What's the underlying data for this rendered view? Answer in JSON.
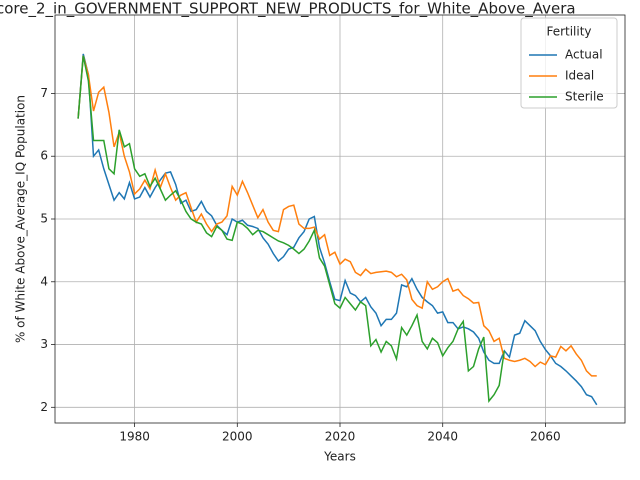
{
  "chart_data": {
    "type": "line",
    "title": "core_2_in_GOVERNMENT_SUPPORT_NEW_PRODUCTS_for_White_Above_Avera",
    "x_label": "Years",
    "y_label": "% of White Above_Average_IQ Population",
    "legend_title": "Fertility",
    "legend": "upper right",
    "grid": true,
    "xlim": [
      1964.5,
      2075.5
    ],
    "ylim": [
      1.75,
      8.25
    ],
    "xticks": [
      1980,
      2000,
      2020,
      2040,
      2060
    ],
    "yticks": [
      2,
      3,
      4,
      5,
      6,
      7
    ],
    "x": [
      1969,
      1970,
      1971,
      1972,
      1973,
      1974,
      1975,
      1976,
      1977,
      1978,
      1979,
      1980,
      1981,
      1982,
      1983,
      1984,
      1985,
      1986,
      1987,
      1988,
      1989,
      1990,
      1991,
      1992,
      1993,
      1994,
      1995,
      1996,
      1997,
      1998,
      1999,
      2000,
      2001,
      2002,
      2003,
      2004,
      2005,
      2006,
      2007,
      2008,
      2009,
      2010,
      2011,
      2012,
      2013,
      2014,
      2015,
      2016,
      2017,
      2018,
      2019,
      2020,
      2021,
      2022,
      2023,
      2024,
      2025,
      2026,
      2027,
      2028,
      2029,
      2030,
      2031,
      2032,
      2033,
      2034,
      2035,
      2036,
      2037,
      2038,
      2039,
      2040,
      2041,
      2042,
      2043,
      2044,
      2045,
      2046,
      2047,
      2048,
      2049,
      2050,
      2051,
      2052,
      2053,
      2054,
      2055,
      2056,
      2057,
      2058,
      2059,
      2060,
      2061,
      2062,
      2063,
      2064,
      2065,
      2066,
      2067,
      2068,
      2069,
      2070
    ],
    "series": [
      {
        "name": "Actual",
        "color": "#1f77b4",
        "values": [
          6.6,
          7.63,
          7.3,
          6.0,
          6.1,
          5.8,
          5.55,
          5.3,
          5.42,
          5.32,
          5.58,
          5.32,
          5.35,
          5.5,
          5.35,
          5.5,
          5.62,
          5.73,
          5.75,
          5.55,
          5.25,
          5.3,
          5.12,
          5.15,
          5.28,
          5.12,
          5.05,
          4.9,
          4.82,
          4.75,
          5.0,
          4.95,
          4.98,
          4.9,
          4.88,
          4.85,
          4.7,
          4.6,
          4.45,
          4.33,
          4.4,
          4.52,
          4.55,
          4.7,
          4.8,
          5.0,
          5.04,
          4.55,
          4.3,
          4.0,
          3.72,
          3.7,
          4.02,
          3.82,
          3.78,
          3.68,
          3.75,
          3.6,
          3.5,
          3.3,
          3.4,
          3.4,
          3.5,
          3.95,
          3.92,
          4.05,
          3.88,
          3.75,
          3.68,
          3.62,
          3.5,
          3.52,
          3.35,
          3.35,
          3.25,
          3.28,
          3.25,
          3.2,
          3.1,
          2.88,
          2.75,
          2.7,
          2.7,
          2.9,
          2.8,
          3.15,
          3.18,
          3.38,
          3.3,
          3.22,
          3.05,
          2.92,
          2.82,
          2.7,
          2.65,
          2.58,
          2.5,
          2.42,
          2.33,
          2.2,
          2.17,
          2.04
        ]
      },
      {
        "name": "Ideal",
        "color": "#ff7f0e",
        "values": [
          6.6,
          7.6,
          7.3,
          6.72,
          7.02,
          7.1,
          6.7,
          6.15,
          6.38,
          6.0,
          5.75,
          5.4,
          5.48,
          5.62,
          5.48,
          5.78,
          5.5,
          5.72,
          5.5,
          5.3,
          5.38,
          5.42,
          5.18,
          4.95,
          5.08,
          4.92,
          4.8,
          4.92,
          4.95,
          5.05,
          5.52,
          5.38,
          5.6,
          5.42,
          5.22,
          5.02,
          5.15,
          4.95,
          4.82,
          4.8,
          5.15,
          5.2,
          5.22,
          4.92,
          4.85,
          4.85,
          4.87,
          4.68,
          4.75,
          4.42,
          4.47,
          4.28,
          4.36,
          4.32,
          4.15,
          4.1,
          4.2,
          4.13,
          4.15,
          4.16,
          4.17,
          4.15,
          4.08,
          4.12,
          4.03,
          3.72,
          3.62,
          3.58,
          4.0,
          3.88,
          3.92,
          4.0,
          4.05,
          3.85,
          3.88,
          3.78,
          3.73,
          3.66,
          3.67,
          3.3,
          3.22,
          3.05,
          3.1,
          2.78,
          2.75,
          2.73,
          2.75,
          2.78,
          2.73,
          2.65,
          2.72,
          2.68,
          2.82,
          2.8,
          2.97,
          2.9,
          2.98,
          2.85,
          2.75,
          2.58,
          2.5,
          2.5
        ]
      },
      {
        "name": "Sterile",
        "color": "#2ca02c",
        "values": [
          6.6,
          7.6,
          7.2,
          6.25,
          6.25,
          6.25,
          5.8,
          5.72,
          6.42,
          6.15,
          6.2,
          5.8,
          5.68,
          5.72,
          5.52,
          5.65,
          5.48,
          5.3,
          5.38,
          5.45,
          5.3,
          5.12,
          5.0,
          4.95,
          4.92,
          4.78,
          4.72,
          4.88,
          4.82,
          4.68,
          4.66,
          4.95,
          4.92,
          4.85,
          4.75,
          4.82,
          4.8,
          4.75,
          4.7,
          4.65,
          4.62,
          4.58,
          4.52,
          4.45,
          4.52,
          4.65,
          4.82,
          4.38,
          4.25,
          3.95,
          3.65,
          3.58,
          3.75,
          3.65,
          3.55,
          3.68,
          3.62,
          2.98,
          3.08,
          2.88,
          3.05,
          2.98,
          2.77,
          3.27,
          3.15,
          3.3,
          3.47,
          3.05,
          2.93,
          3.1,
          3.03,
          2.82,
          2.95,
          3.05,
          3.25,
          3.37,
          2.58,
          2.65,
          2.93,
          3.12,
          2.1,
          2.2,
          2.35,
          2.9,
          null,
          null,
          null,
          null,
          null,
          null,
          null,
          null,
          null,
          null,
          null,
          null,
          null,
          null,
          null,
          null,
          null,
          null
        ]
      }
    ]
  }
}
